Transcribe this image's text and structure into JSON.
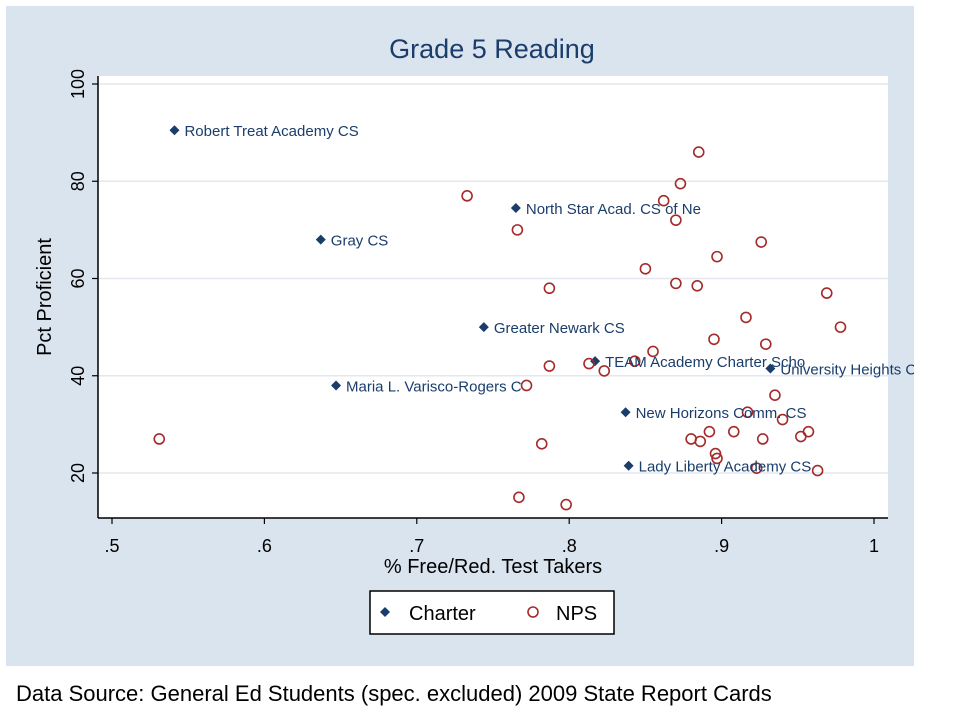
{
  "chart_data": {
    "type": "scatter",
    "title": "Grade 5 Reading",
    "xlabel": "% Free/Red. Test Takers",
    "ylabel": "Pct Proficient",
    "xlim": [
      0.5,
      1.0
    ],
    "ylim": [
      10,
      100
    ],
    "x_ticks": [
      ".5",
      ".6",
      ".7",
      ".8",
      ".9",
      "1"
    ],
    "y_ticks": [
      "20",
      "40",
      "60",
      "80",
      "100"
    ],
    "grid": true,
    "legend_position": "bottom-center",
    "series": [
      {
        "name": "Charter",
        "marker": "diamond",
        "color": "#1a3d6b",
        "points": [
          {
            "x": 0.541,
            "y": 90.5,
            "label": "Robert Treat Academy CS"
          },
          {
            "x": 0.765,
            "y": 74.5,
            "label": "North Star Acad. CS of Ne"
          },
          {
            "x": 0.637,
            "y": 68.0,
            "label": "Gray CS"
          },
          {
            "x": 0.744,
            "y": 50.0,
            "label": "Greater Newark CS"
          },
          {
            "x": 0.817,
            "y": 43.0,
            "label": "TEAM Academy Charter Scho"
          },
          {
            "x": 0.932,
            "y": 41.5,
            "label": "University Heights CS"
          },
          {
            "x": 0.647,
            "y": 38.0,
            "label": "Maria L. Varisco-Rogers C"
          },
          {
            "x": 0.837,
            "y": 32.5,
            "label": "New Horizons Comm. CS"
          },
          {
            "x": 0.839,
            "y": 21.5,
            "label": "Lady Liberty Academy CS"
          }
        ]
      },
      {
        "name": "NPS",
        "marker": "hollow-circle",
        "color": "#a52a2a",
        "points": [
          {
            "x": 0.531,
            "y": 27.0
          },
          {
            "x": 0.733,
            "y": 77.0
          },
          {
            "x": 0.766,
            "y": 70.0
          },
          {
            "x": 0.767,
            "y": 15.0
          },
          {
            "x": 0.772,
            "y": 38.0
          },
          {
            "x": 0.782,
            "y": 26.0
          },
          {
            "x": 0.787,
            "y": 58.0
          },
          {
            "x": 0.787,
            "y": 42.0
          },
          {
            "x": 0.798,
            "y": 13.5
          },
          {
            "x": 0.813,
            "y": 42.5
          },
          {
            "x": 0.823,
            "y": 41.0
          },
          {
            "x": 0.843,
            "y": 43.0
          },
          {
            "x": 0.85,
            "y": 62.0
          },
          {
            "x": 0.855,
            "y": 45.0
          },
          {
            "x": 0.862,
            "y": 76.0
          },
          {
            "x": 0.87,
            "y": 72.0
          },
          {
            "x": 0.87,
            "y": 59.0
          },
          {
            "x": 0.873,
            "y": 79.5
          },
          {
            "x": 0.88,
            "y": 27.0
          },
          {
            "x": 0.884,
            "y": 58.5
          },
          {
            "x": 0.885,
            "y": 86.0
          },
          {
            "x": 0.886,
            "y": 26.5
          },
          {
            "x": 0.892,
            "y": 28.5
          },
          {
            "x": 0.895,
            "y": 47.5
          },
          {
            "x": 0.896,
            "y": 24.0
          },
          {
            "x": 0.897,
            "y": 64.5
          },
          {
            "x": 0.897,
            "y": 23.0
          },
          {
            "x": 0.908,
            "y": 28.5
          },
          {
            "x": 0.916,
            "y": 52.0
          },
          {
            "x": 0.917,
            "y": 32.5
          },
          {
            "x": 0.923,
            "y": 21.0
          },
          {
            "x": 0.926,
            "y": 67.5
          },
          {
            "x": 0.927,
            "y": 27.0
          },
          {
            "x": 0.929,
            "y": 46.5
          },
          {
            "x": 0.935,
            "y": 36.0
          },
          {
            "x": 0.94,
            "y": 31.0
          },
          {
            "x": 0.952,
            "y": 27.5
          },
          {
            "x": 0.957,
            "y": 28.5
          },
          {
            "x": 0.963,
            "y": 20.5
          },
          {
            "x": 0.969,
            "y": 57.0
          },
          {
            "x": 0.978,
            "y": 50.0
          }
        ]
      }
    ]
  },
  "source_note": "Data Source: General Ed Students (spec. excluded) 2009 State Report Cards"
}
